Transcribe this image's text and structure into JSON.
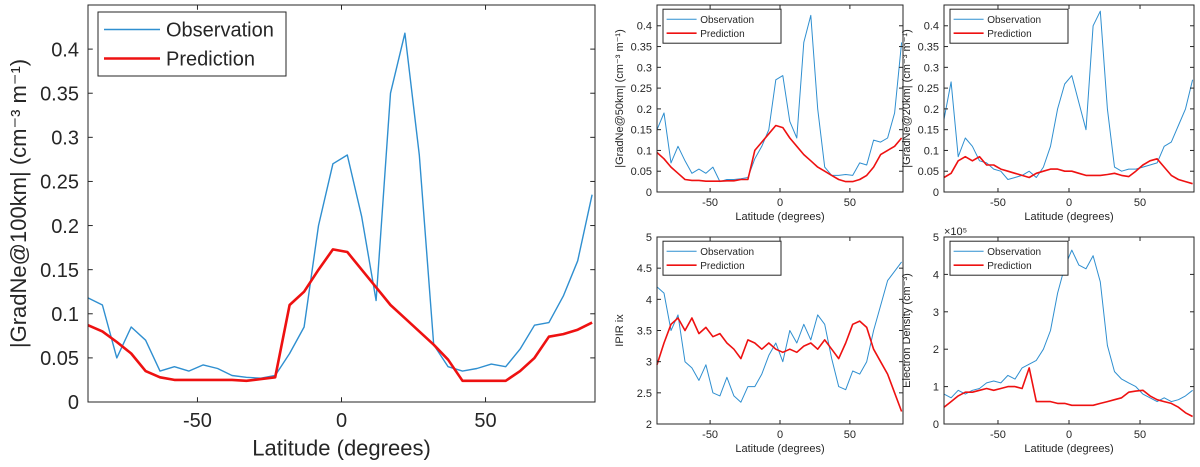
{
  "colors": {
    "observation": "#2f8fd0",
    "prediction": "#ee1111",
    "axis": "#262626"
  },
  "chart_data": [
    {
      "type": "line",
      "xlabel": "Latitude (degrees)",
      "ylabel": "|GradNe@100km| (cm⁻³ m⁻¹)",
      "xlim": [
        -88,
        88
      ],
      "ylim": [
        0,
        0.45
      ],
      "xticks": [
        -50,
        0,
        50
      ],
      "yticks": [
        0,
        0.05,
        0.1,
        0.15,
        0.2,
        0.25,
        0.3,
        0.35,
        0.4
      ],
      "ytick_labels": [
        "0",
        "0.05",
        "0.1",
        "0.15",
        "0.2",
        "0.25",
        "0.3",
        "0.35",
        "0.4"
      ],
      "exponent_label": "",
      "grid": false,
      "legend_position": "top-left",
      "series": [
        {
          "name": "Observation",
          "color_key": "observation",
          "x": [
            -88,
            -83,
            -78,
            -73,
            -68,
            -63,
            -58,
            -53,
            -48,
            -43,
            -38,
            -33,
            -28,
            -23,
            -18,
            -13,
            -8,
            -3,
            2,
            7,
            12,
            17,
            22,
            27,
            32,
            37,
            42,
            47,
            52,
            57,
            62,
            67,
            72,
            77,
            82,
            87
          ],
          "y": [
            0.118,
            0.11,
            0.05,
            0.085,
            0.07,
            0.035,
            0.04,
            0.035,
            0.042,
            0.038,
            0.03,
            0.028,
            0.027,
            0.03,
            0.055,
            0.085,
            0.2,
            0.27,
            0.28,
            0.21,
            0.115,
            0.35,
            0.418,
            0.28,
            0.065,
            0.04,
            0.035,
            0.038,
            0.043,
            0.04,
            0.06,
            0.087,
            0.09,
            0.12,
            0.16,
            0.235
          ]
        },
        {
          "name": "Prediction",
          "color_key": "prediction",
          "x": [
            -88,
            -83,
            -78,
            -73,
            -68,
            -63,
            -58,
            -53,
            -48,
            -43,
            -38,
            -33,
            -28,
            -23,
            -18,
            -13,
            -8,
            -3,
            2,
            7,
            12,
            17,
            22,
            27,
            32,
            37,
            42,
            47,
            52,
            57,
            62,
            67,
            72,
            77,
            82,
            87
          ],
          "y": [
            0.087,
            0.08,
            0.068,
            0.055,
            0.035,
            0.028,
            0.025,
            0.025,
            0.025,
            0.025,
            0.025,
            0.024,
            0.026,
            0.028,
            0.11,
            0.125,
            0.15,
            0.173,
            0.17,
            0.15,
            0.13,
            0.11,
            0.095,
            0.08,
            0.065,
            0.048,
            0.024,
            0.024,
            0.024,
            0.024,
            0.035,
            0.05,
            0.074,
            0.077,
            0.082,
            0.09
          ]
        }
      ]
    },
    {
      "type": "line",
      "xlabel": "Latitude (degrees)",
      "ylabel": "|GradNe@50km| (cm⁻³ m⁻¹)",
      "xlim": [
        -88,
        88
      ],
      "ylim": [
        0,
        0.45
      ],
      "xticks": [
        -50,
        0,
        50
      ],
      "yticks": [
        0,
        0.05,
        0.1,
        0.15,
        0.2,
        0.25,
        0.3,
        0.35,
        0.4
      ],
      "ytick_labels": [
        "0",
        "0.05",
        "0.1",
        "0.15",
        "0.2",
        "0.25",
        "0.3",
        "0.35",
        "0.4"
      ],
      "exponent_label": "",
      "grid": false,
      "legend_position": "top-left",
      "series": [
        {
          "name": "Observation",
          "color_key": "observation",
          "x": [
            -88,
            -83,
            -78,
            -73,
            -68,
            -63,
            -58,
            -53,
            -48,
            -43,
            -38,
            -33,
            -28,
            -23,
            -18,
            -13,
            -8,
            -3,
            2,
            7,
            12,
            17,
            22,
            27,
            32,
            37,
            42,
            47,
            52,
            57,
            62,
            67,
            72,
            77,
            82,
            87
          ],
          "y": [
            0.15,
            0.19,
            0.07,
            0.11,
            0.075,
            0.045,
            0.055,
            0.045,
            0.06,
            0.025,
            0.03,
            0.03,
            0.032,
            0.035,
            0.08,
            0.11,
            0.15,
            0.27,
            0.28,
            0.17,
            0.13,
            0.36,
            0.425,
            0.2,
            0.06,
            0.04,
            0.04,
            0.042,
            0.04,
            0.07,
            0.065,
            0.125,
            0.12,
            0.13,
            0.19,
            0.36
          ]
        },
        {
          "name": "Prediction",
          "color_key": "prediction",
          "x": [
            -88,
            -83,
            -78,
            -73,
            -68,
            -63,
            -58,
            -53,
            -48,
            -43,
            -38,
            -33,
            -28,
            -23,
            -18,
            -13,
            -8,
            -3,
            2,
            7,
            12,
            17,
            22,
            27,
            32,
            37,
            42,
            47,
            52,
            57,
            62,
            67,
            72,
            77,
            82,
            87
          ],
          "y": [
            0.095,
            0.08,
            0.06,
            0.045,
            0.03,
            0.028,
            0.028,
            0.026,
            0.026,
            0.026,
            0.027,
            0.027,
            0.03,
            0.03,
            0.1,
            0.12,
            0.14,
            0.16,
            0.155,
            0.13,
            0.11,
            0.09,
            0.075,
            0.06,
            0.05,
            0.04,
            0.03,
            0.025,
            0.025,
            0.03,
            0.04,
            0.06,
            0.09,
            0.1,
            0.11,
            0.13
          ]
        }
      ]
    },
    {
      "type": "line",
      "xlabel": "Latitude (degrees)",
      "ylabel": "|GradNe@20km| (cm⁻³ m⁻¹)",
      "xlim": [
        -88,
        88
      ],
      "ylim": [
        0,
        0.45
      ],
      "xticks": [
        -50,
        0,
        50
      ],
      "yticks": [
        0,
        0.05,
        0.1,
        0.15,
        0.2,
        0.25,
        0.3,
        0.35,
        0.4
      ],
      "ytick_labels": [
        "0",
        "0.05",
        "0.1",
        "0.15",
        "0.2",
        "0.25",
        "0.3",
        "0.35",
        "0.4"
      ],
      "exponent_label": "",
      "grid": false,
      "legend_position": "top-left",
      "series": [
        {
          "name": "Observation",
          "color_key": "observation",
          "x": [
            -88,
            -83,
            -78,
            -73,
            -68,
            -63,
            -58,
            -53,
            -48,
            -43,
            -38,
            -33,
            -28,
            -23,
            -18,
            -13,
            -8,
            -3,
            2,
            7,
            12,
            17,
            22,
            27,
            32,
            37,
            42,
            47,
            52,
            57,
            62,
            67,
            72,
            77,
            82,
            87
          ],
          "y": [
            0.175,
            0.265,
            0.085,
            0.13,
            0.11,
            0.075,
            0.07,
            0.055,
            0.05,
            0.03,
            0.035,
            0.04,
            0.05,
            0.035,
            0.06,
            0.11,
            0.2,
            0.26,
            0.28,
            0.215,
            0.15,
            0.4,
            0.435,
            0.2,
            0.06,
            0.05,
            0.055,
            0.055,
            0.06,
            0.065,
            0.07,
            0.11,
            0.12,
            0.16,
            0.2,
            0.27
          ]
        },
        {
          "name": "Prediction",
          "color_key": "prediction",
          "x": [
            -88,
            -83,
            -78,
            -73,
            -68,
            -63,
            -58,
            -53,
            -48,
            -43,
            -38,
            -33,
            -28,
            -23,
            -18,
            -13,
            -8,
            -3,
            2,
            7,
            12,
            17,
            22,
            27,
            32,
            37,
            42,
            47,
            52,
            57,
            62,
            67,
            72,
            77,
            82,
            87
          ],
          "y": [
            0.035,
            0.045,
            0.075,
            0.085,
            0.075,
            0.085,
            0.065,
            0.065,
            0.055,
            0.05,
            0.045,
            0.04,
            0.035,
            0.045,
            0.05,
            0.055,
            0.055,
            0.05,
            0.05,
            0.045,
            0.04,
            0.04,
            0.04,
            0.042,
            0.045,
            0.04,
            0.037,
            0.05,
            0.065,
            0.075,
            0.08,
            0.06,
            0.04,
            0.03,
            0.025,
            0.02
          ]
        }
      ]
    },
    {
      "type": "line",
      "xlabel": "Latitude (degrees)",
      "ylabel": "IPIR ix",
      "xlim": [
        -88,
        88
      ],
      "ylim": [
        2,
        5
      ],
      "xticks": [
        -50,
        0,
        50
      ],
      "yticks": [
        2,
        2.5,
        3,
        3.5,
        4,
        4.5,
        5
      ],
      "ytick_labels": [
        "2",
        "2.5",
        "3",
        "3.5",
        "4",
        "4.5",
        "5"
      ],
      "exponent_label": "",
      "grid": false,
      "legend_position": "top-left",
      "series": [
        {
          "name": "Observation",
          "color_key": "observation",
          "x": [
            -88,
            -83,
            -78,
            -73,
            -68,
            -63,
            -58,
            -53,
            -48,
            -43,
            -38,
            -33,
            -28,
            -23,
            -18,
            -13,
            -8,
            -3,
            2,
            7,
            12,
            17,
            22,
            27,
            32,
            37,
            42,
            47,
            52,
            57,
            62,
            67,
            72,
            77,
            82,
            87
          ],
          "y": [
            4.2,
            4.1,
            3.5,
            3.75,
            3.0,
            2.9,
            2.7,
            2.95,
            2.5,
            2.45,
            2.75,
            2.45,
            2.35,
            2.6,
            2.6,
            2.8,
            3.1,
            3.3,
            3.0,
            3.5,
            3.3,
            3.6,
            3.35,
            3.75,
            3.6,
            3.05,
            2.6,
            2.55,
            2.85,
            2.8,
            3.0,
            3.5,
            3.9,
            4.3,
            4.45,
            4.6
          ]
        },
        {
          "name": "Prediction",
          "color_key": "prediction",
          "x": [
            -88,
            -83,
            -78,
            -73,
            -68,
            -63,
            -58,
            -53,
            -48,
            -43,
            -38,
            -33,
            -28,
            -23,
            -18,
            -13,
            -8,
            -3,
            2,
            7,
            12,
            17,
            22,
            27,
            32,
            37,
            42,
            47,
            52,
            57,
            62,
            67,
            72,
            77,
            82,
            87
          ],
          "y": [
            2.95,
            3.3,
            3.6,
            3.7,
            3.5,
            3.7,
            3.45,
            3.55,
            3.4,
            3.45,
            3.3,
            3.2,
            3.05,
            3.35,
            3.3,
            3.2,
            3.3,
            3.2,
            3.15,
            3.2,
            3.15,
            3.25,
            3.3,
            3.2,
            3.35,
            3.2,
            3.05,
            3.3,
            3.6,
            3.65,
            3.55,
            3.2,
            3.0,
            2.8,
            2.5,
            2.2
          ]
        }
      ]
    },
    {
      "type": "line",
      "xlabel": "Latitude (degrees)",
      "ylabel": "Electron Density (cm⁻³)",
      "xlim": [
        -88,
        88
      ],
      "ylim": [
        0,
        500000
      ],
      "xticks": [
        -50,
        0,
        50
      ],
      "yticks": [
        0,
        100000,
        200000,
        300000,
        400000,
        500000
      ],
      "ytick_labels": [
        "0",
        "1",
        "2",
        "3",
        "4",
        "5"
      ],
      "exponent_label": "×10⁵",
      "grid": false,
      "legend_position": "top-left",
      "series": [
        {
          "name": "Observation",
          "color_key": "observation",
          "x": [
            -88,
            -83,
            -78,
            -73,
            -68,
            -63,
            -58,
            -53,
            -48,
            -43,
            -38,
            -33,
            -28,
            -23,
            -18,
            -13,
            -8,
            -3,
            2,
            7,
            12,
            17,
            22,
            27,
            32,
            37,
            42,
            47,
            52,
            57,
            62,
            67,
            72,
            77,
            82,
            87
          ],
          "y": [
            80000,
            70000,
            90000,
            80000,
            90000,
            95000,
            110000,
            115000,
            110000,
            130000,
            120000,
            150000,
            160000,
            170000,
            200000,
            250000,
            350000,
            420000,
            465000,
            425000,
            415000,
            450000,
            380000,
            210000,
            140000,
            120000,
            110000,
            100000,
            80000,
            70000,
            60000,
            70000,
            60000,
            65000,
            75000,
            90000
          ]
        },
        {
          "name": "Prediction",
          "color_key": "prediction",
          "x": [
            -88,
            -83,
            -78,
            -73,
            -68,
            -63,
            -58,
            -53,
            -48,
            -43,
            -38,
            -33,
            -28,
            -23,
            -18,
            -13,
            -8,
            -3,
            2,
            7,
            12,
            17,
            22,
            27,
            32,
            37,
            42,
            47,
            52,
            57,
            62,
            67,
            72,
            77,
            82,
            87
          ],
          "y": [
            45000,
            60000,
            75000,
            85000,
            85000,
            90000,
            95000,
            90000,
            95000,
            100000,
            100000,
            95000,
            150000,
            60000,
            60000,
            60000,
            55000,
            55000,
            50000,
            50000,
            50000,
            50000,
            55000,
            60000,
            65000,
            70000,
            85000,
            88000,
            90000,
            75000,
            65000,
            60000,
            55000,
            45000,
            30000,
            20000
          ]
        }
      ]
    }
  ]
}
